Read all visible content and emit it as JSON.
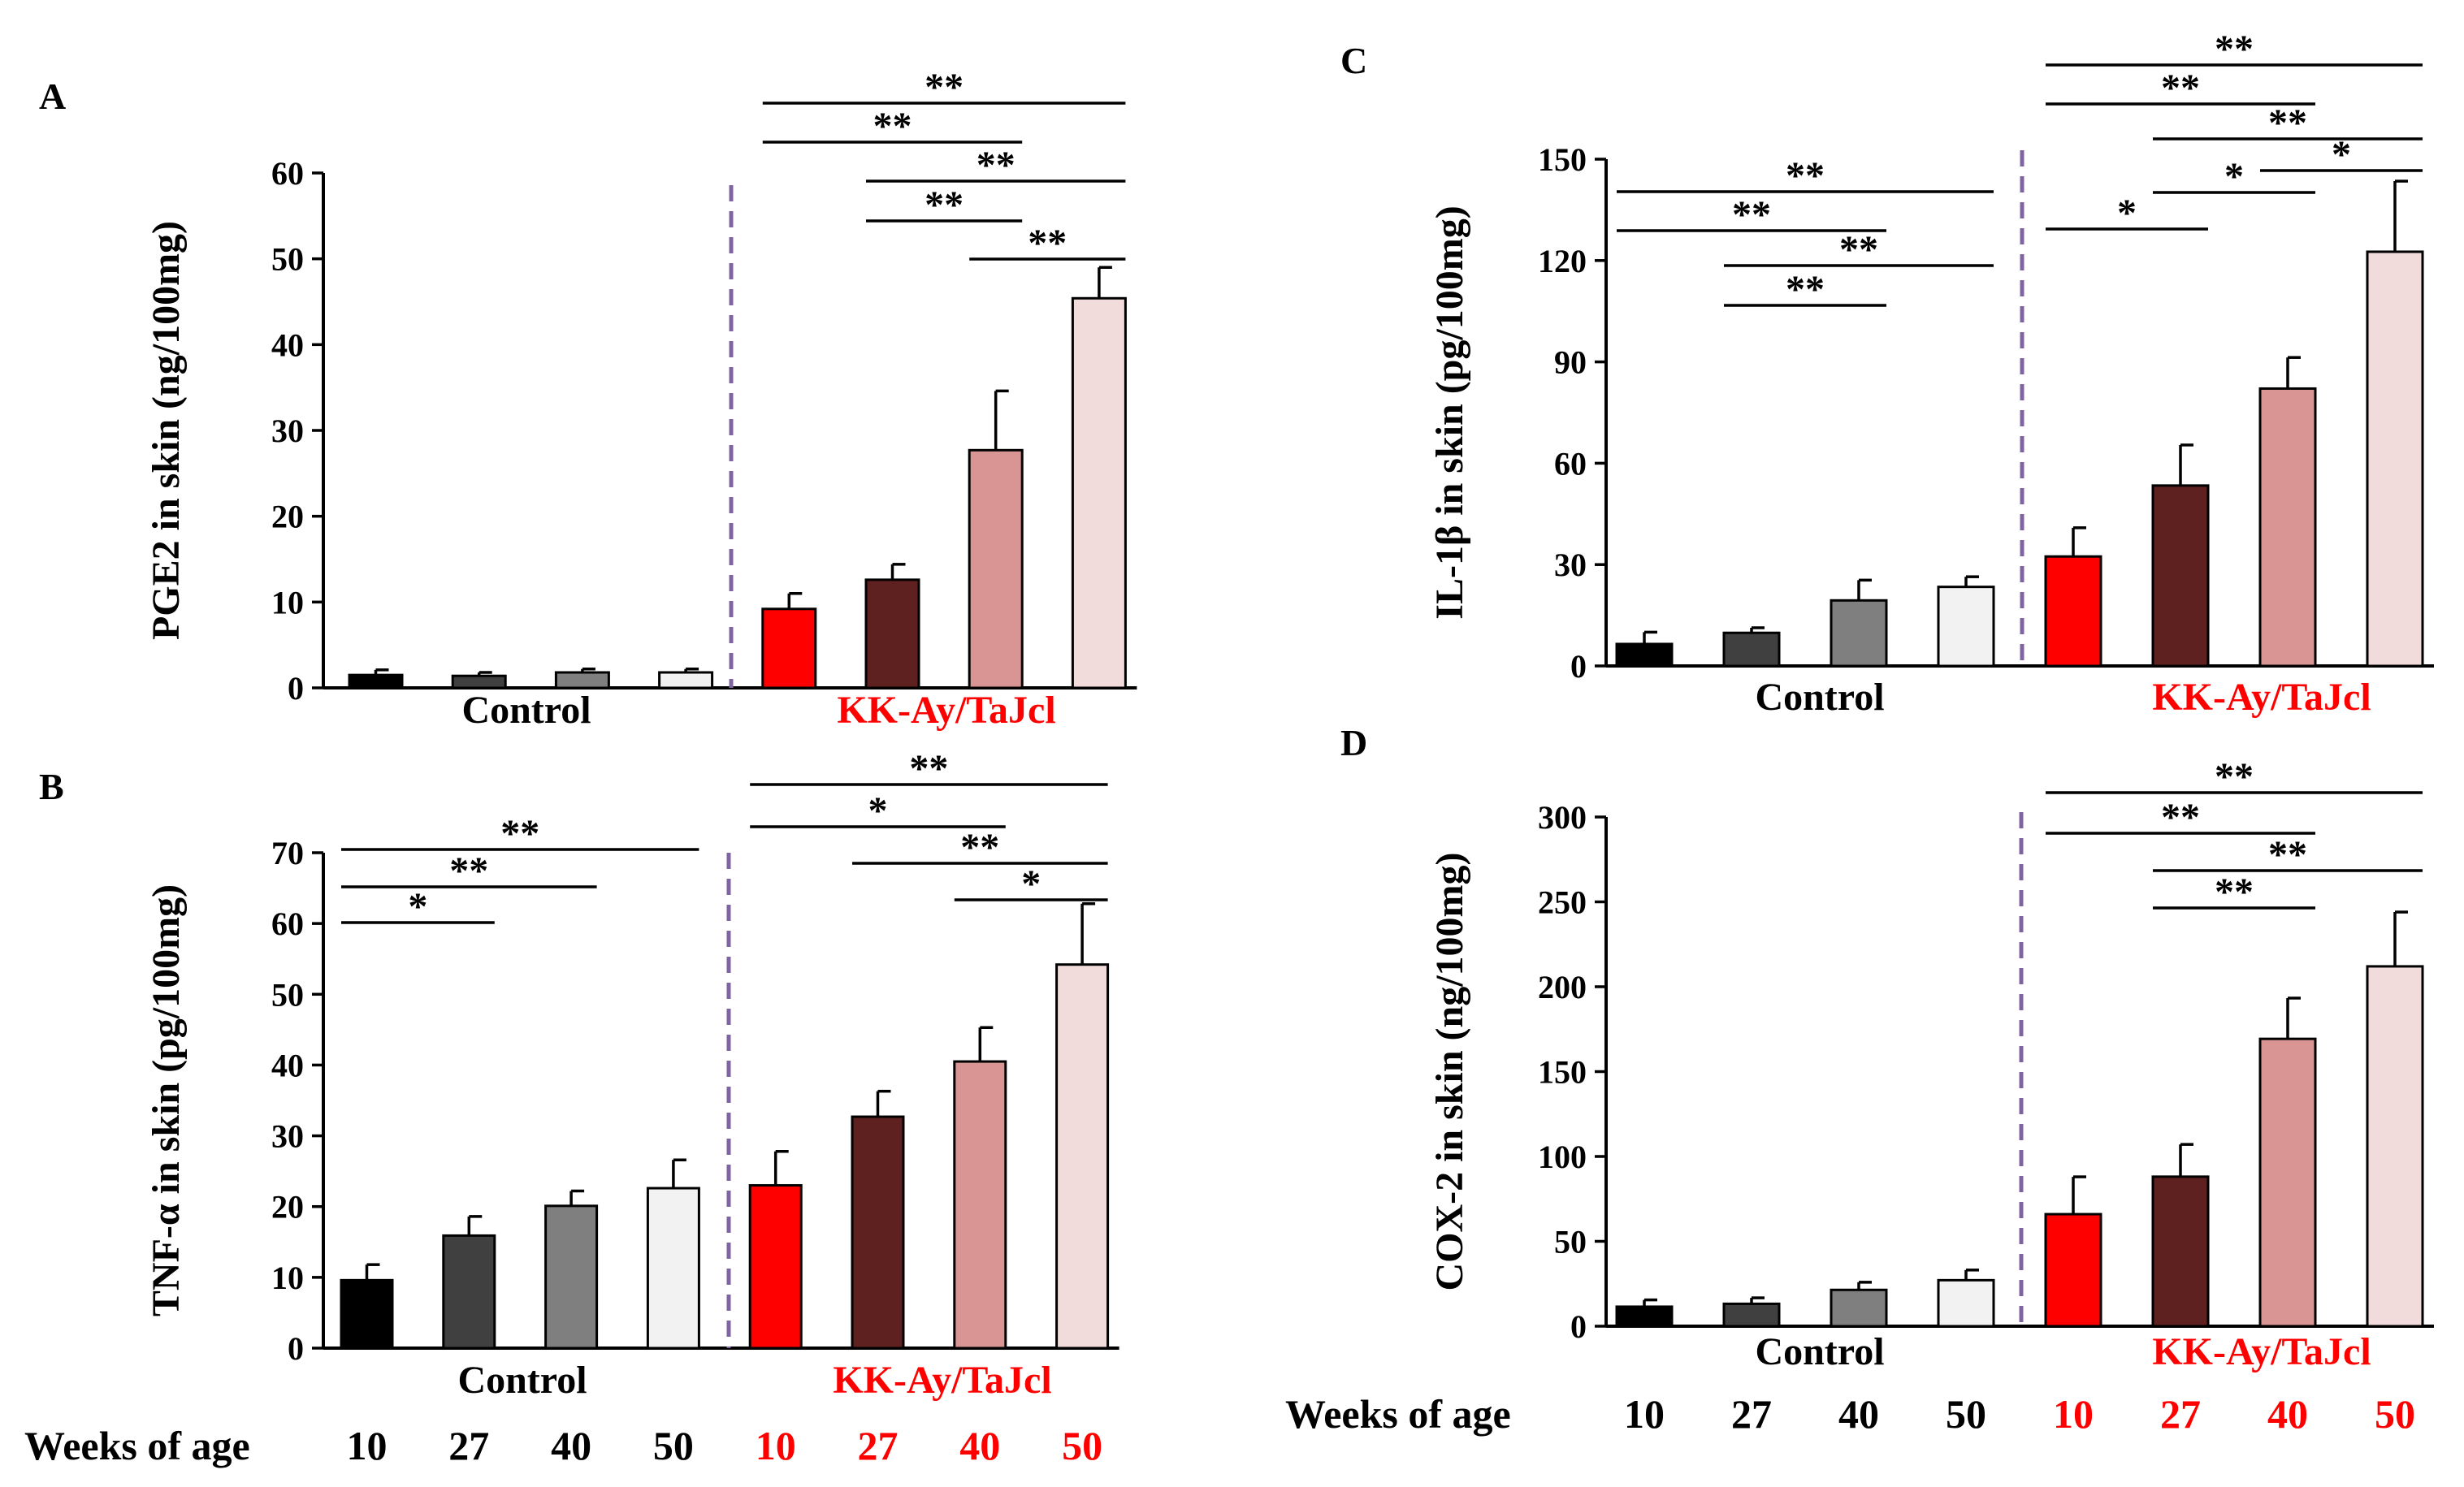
{
  "figure": {
    "weeks_label": "Weeks of age",
    "group_control": "Control",
    "group_diabetic": "KK-Ay/TaJcl",
    "colors": {
      "control": [
        "#000000",
        "#404040",
        "#7f7f7f",
        "#f2f2f2"
      ],
      "diabetic": [
        "#ff0000",
        "#5f2020",
        "#d99594",
        "#f2dcdb"
      ],
      "control_text": "#000000",
      "diabetic_text": "#ff0000",
      "divider": "#8064a2"
    }
  },
  "chart_data": [
    {
      "panel": "A",
      "type": "bar",
      "ylabel": "PGE2 in skin (ng/100mg)",
      "ylim": [
        0,
        60
      ],
      "yticks": [
        0,
        10,
        20,
        30,
        40,
        50,
        60
      ],
      "weeks": [
        "10",
        "27",
        "40",
        "50",
        "10",
        "27",
        "40",
        "50"
      ],
      "series": [
        {
          "name": "Control",
          "values": [
            1.5,
            1.4,
            1.8,
            1.8
          ],
          "errors": [
            0.6,
            0.4,
            0.4,
            0.4
          ]
        },
        {
          "name": "KK-Ay/TaJcl",
          "values": [
            9.2,
            12.6,
            27.7,
            45.4
          ],
          "errors": [
            1.8,
            1.8,
            6.9,
            3.6
          ]
        }
      ],
      "significance": [
        {
          "from": 4,
          "to": 7,
          "label": "**"
        },
        {
          "from": 4,
          "to": 6,
          "label": "**"
        },
        {
          "from": 5,
          "to": 7,
          "label": "**"
        },
        {
          "from": 5,
          "to": 6,
          "label": "**"
        },
        {
          "from": 6,
          "to": 7,
          "label": "**"
        }
      ]
    },
    {
      "panel": "B",
      "type": "bar",
      "ylabel": "TNF-α in skin (pg/100mg)",
      "ylim": [
        0,
        70
      ],
      "yticks": [
        0,
        10,
        20,
        30,
        40,
        50,
        60,
        70
      ],
      "weeks": [
        "10",
        "27",
        "40",
        "50",
        "10",
        "27",
        "40",
        "50"
      ],
      "series": [
        {
          "name": "Control",
          "values": [
            9.6,
            15.9,
            20.1,
            22.6
          ],
          "errors": [
            2.2,
            2.7,
            2.1,
            4.0
          ]
        },
        {
          "name": "KK-Ay/TaJcl",
          "values": [
            23.0,
            32.7,
            40.5,
            54.2
          ],
          "errors": [
            4.8,
            3.6,
            4.8,
            8.6
          ]
        }
      ],
      "significance": [
        {
          "from": 0,
          "to": 3,
          "label": "**"
        },
        {
          "from": 0,
          "to": 2,
          "label": "**"
        },
        {
          "from": 0,
          "to": 1,
          "label": "*"
        },
        {
          "from": 4,
          "to": 7,
          "label": "**"
        },
        {
          "from": 4,
          "to": 6,
          "label": "*"
        },
        {
          "from": 5,
          "to": 7,
          "label": "**"
        },
        {
          "from": 6,
          "to": 7,
          "label": "*"
        }
      ]
    },
    {
      "panel": "C",
      "type": "bar",
      "ylabel": "IL-1β in skin (pg/100mg)",
      "ylim": [
        0,
        150
      ],
      "yticks": [
        0,
        30,
        60,
        90,
        120,
        150
      ],
      "weeks": [
        "10",
        "27",
        "40",
        "50",
        "10",
        "27",
        "40",
        "50"
      ],
      "series": [
        {
          "name": "Control",
          "values": [
            6.5,
            9.8,
            19.4,
            23.4
          ],
          "errors": [
            3.5,
            1.5,
            6.0,
            3.0
          ]
        },
        {
          "name": "KK-Ay/TaJcl",
          "values": [
            32.4,
            53.4,
            82.1,
            122.6
          ],
          "errors": [
            8.5,
            12.0,
            9.2,
            20.9
          ]
        }
      ],
      "significance": [
        {
          "from": 0,
          "to": 3,
          "label": "**"
        },
        {
          "from": 0,
          "to": 2,
          "label": "**"
        },
        {
          "from": 1,
          "to": 3,
          "label": "**"
        },
        {
          "from": 1,
          "to": 2,
          "label": "**"
        },
        {
          "from": 4,
          "to": 7,
          "label": "**"
        },
        {
          "from": 4,
          "to": 6,
          "label": "**"
        },
        {
          "from": 5,
          "to": 7,
          "label": "**"
        },
        {
          "from": 6,
          "to": 7,
          "label": "*"
        },
        {
          "from": 5,
          "to": 6,
          "label": "*"
        },
        {
          "from": 4,
          "to": 5,
          "label": "*"
        }
      ]
    },
    {
      "panel": "D",
      "type": "bar",
      "ylabel": "COX-2 in skin (ng/100mg)",
      "ylim": [
        0,
        300
      ],
      "yticks": [
        0,
        50,
        100,
        150,
        200,
        250,
        300
      ],
      "weeks": [
        "10",
        "27",
        "40",
        "50",
        "10",
        "27",
        "40",
        "50"
      ],
      "series": [
        {
          "name": "Control",
          "values": [
            11.5,
            13.2,
            21.4,
            27.1
          ],
          "errors": [
            4.0,
            3.5,
            4.5,
            6.0
          ]
        },
        {
          "name": "KK-Ay/TaJcl",
          "values": [
            66.0,
            88.1,
            169.3,
            212.0
          ],
          "errors": [
            22.0,
            19.0,
            24.0,
            32.0
          ]
        }
      ],
      "significance": [
        {
          "from": 4,
          "to": 7,
          "label": "**"
        },
        {
          "from": 4,
          "to": 6,
          "label": "**"
        },
        {
          "from": 5,
          "to": 7,
          "label": "**"
        },
        {
          "from": 5,
          "to": 6,
          "label": "**"
        }
      ]
    }
  ]
}
